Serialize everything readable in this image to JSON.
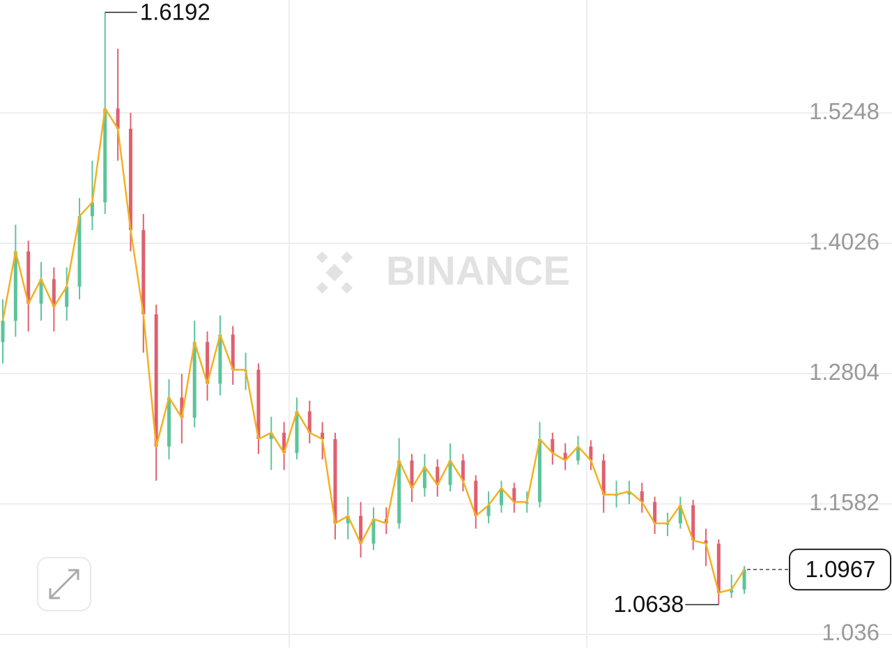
{
  "chart_data": {
    "type": "candlestick",
    "watermark": "BINANCE",
    "ylim": [
      1.0236,
      1.6307
    ],
    "yticks": [
      1.5248,
      1.4026,
      1.2804,
      1.1582,
      1.036
    ],
    "grid": true,
    "up_color": "#5dc49a",
    "down_color": "#e0606e",
    "line_color": "#f5b020",
    "open": [
      1.31,
      1.33,
      1.395,
      1.346,
      1.369,
      1.343,
      1.362,
      1.428,
      1.441,
      1.529,
      1.51,
      1.415,
      1.336,
      1.212,
      1.258,
      1.239,
      1.31,
      1.271,
      1.317,
      1.284,
      1.284,
      1.219,
      1.225,
      1.206,
      1.245,
      1.225,
      1.219,
      1.14,
      1.147,
      1.121,
      1.144,
      1.14,
      1.199,
      1.173,
      1.193,
      1.176,
      1.199,
      1.18,
      1.147,
      1.157,
      1.173,
      1.16,
      1.16,
      1.219,
      1.206,
      1.199,
      1.212,
      1.199,
      1.167,
      1.167,
      1.17,
      1.16,
      1.14,
      1.14,
      1.157,
      1.124,
      1.121,
      1.075,
      1.078
    ],
    "high": [
      1.35,
      1.42,
      1.405,
      1.385,
      1.38,
      1.38,
      1.445,
      1.48,
      1.6192,
      1.585,
      1.525,
      1.43,
      1.345,
      1.275,
      1.28,
      1.33,
      1.32,
      1.335,
      1.325,
      1.3,
      1.29,
      1.24,
      1.235,
      1.258,
      1.255,
      1.235,
      1.225,
      1.165,
      1.16,
      1.155,
      1.155,
      1.22,
      1.205,
      1.205,
      1.2,
      1.215,
      1.205,
      1.185,
      1.17,
      1.18,
      1.178,
      1.17,
      1.235,
      1.225,
      1.215,
      1.222,
      1.218,
      1.205,
      1.18,
      1.18,
      1.178,
      1.165,
      1.15,
      1.165,
      1.162,
      1.135,
      1.125,
      1.092,
      1.1
    ],
    "low": [
      1.29,
      1.315,
      1.32,
      1.33,
      1.32,
      1.33,
      1.35,
      1.415,
      1.43,
      1.48,
      1.395,
      1.3,
      1.18,
      1.2,
      1.215,
      1.23,
      1.255,
      1.26,
      1.27,
      1.265,
      1.205,
      1.19,
      1.19,
      1.2,
      1.215,
      1.2,
      1.125,
      1.125,
      1.108,
      1.115,
      1.13,
      1.135,
      1.16,
      1.165,
      1.165,
      1.17,
      1.17,
      1.135,
      1.14,
      1.15,
      1.15,
      1.15,
      1.155,
      1.195,
      1.19,
      1.195,
      1.19,
      1.15,
      1.155,
      1.158,
      1.15,
      1.13,
      1.128,
      1.135,
      1.115,
      1.1,
      1.0638,
      1.07,
      1.074
    ],
    "close": [
      1.33,
      1.395,
      1.346,
      1.369,
      1.343,
      1.362,
      1.428,
      1.441,
      1.529,
      1.51,
      1.415,
      1.336,
      1.212,
      1.258,
      1.239,
      1.31,
      1.271,
      1.317,
      1.284,
      1.284,
      1.219,
      1.225,
      1.206,
      1.245,
      1.225,
      1.219,
      1.14,
      1.147,
      1.121,
      1.144,
      1.14,
      1.199,
      1.173,
      1.193,
      1.176,
      1.199,
      1.18,
      1.147,
      1.157,
      1.173,
      1.16,
      1.16,
      1.219,
      1.206,
      1.199,
      1.212,
      1.199,
      1.167,
      1.167,
      1.17,
      1.16,
      1.14,
      1.14,
      1.157,
      1.124,
      1.121,
      1.075,
      1.078,
      1.0967
    ]
  }
}
